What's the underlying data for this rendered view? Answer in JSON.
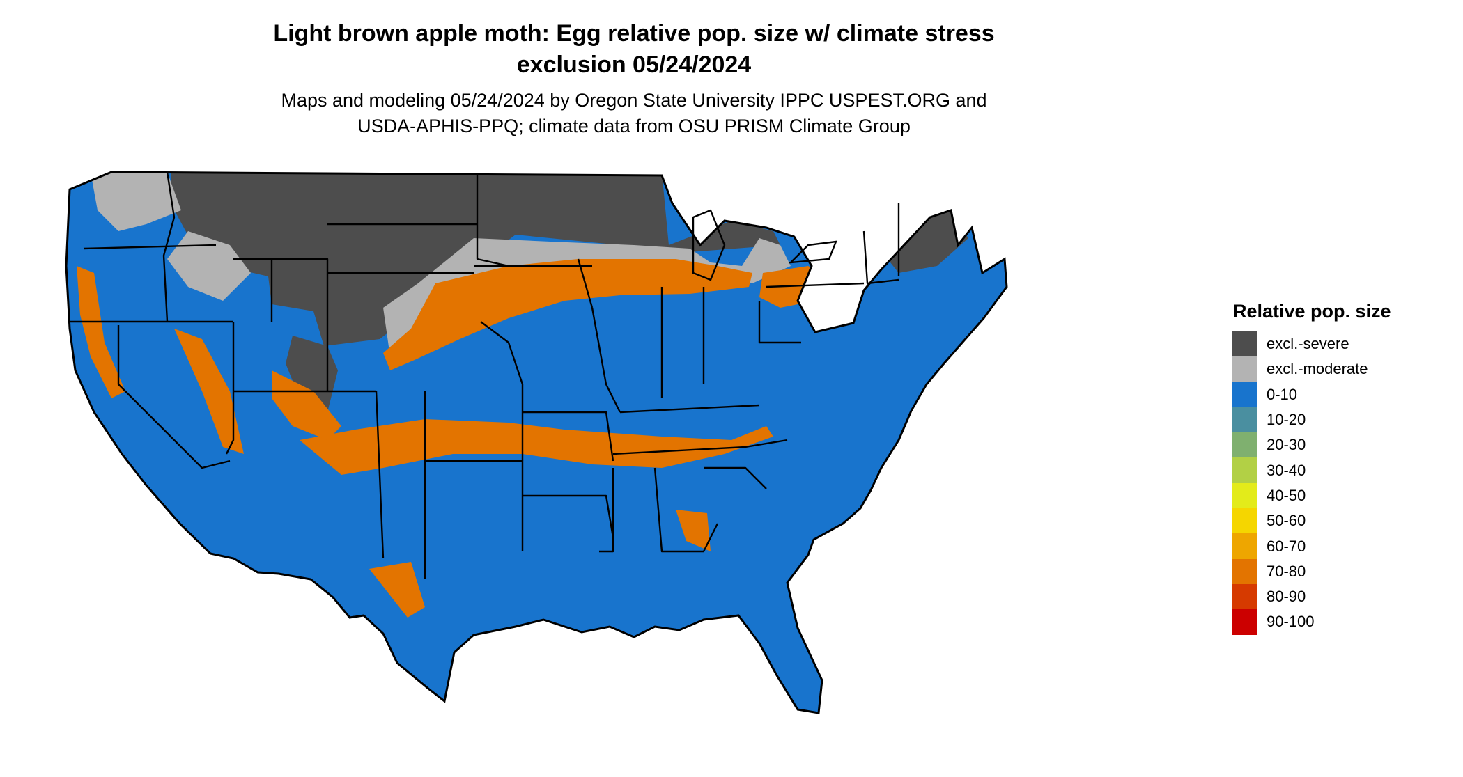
{
  "header": {
    "title_line1": "Light brown apple moth: Egg relative pop. size w/ climate stress",
    "title_line2": "exclusion 05/24/2024",
    "subtitle_line1": "Maps and modeling 05/24/2024 by Oregon State University IPPC USPEST.ORG and",
    "subtitle_line2": "USDA-APHIS-PPQ; climate data from OSU PRISM Climate Group"
  },
  "legend": {
    "title": "Relative pop. size",
    "items": [
      {
        "label": "excl.-severe",
        "color": "#4d4d4d"
      },
      {
        "label": "excl.-moderate",
        "color": "#b3b3b3"
      },
      {
        "label": "0-10",
        "color": "#1874cd"
      },
      {
        "label": "10-20",
        "color": "#4a8fa0"
      },
      {
        "label": "20-30",
        "color": "#7fb06f"
      },
      {
        "label": "30-40",
        "color": "#b2d045"
      },
      {
        "label": "40-50",
        "color": "#e3eb1a"
      },
      {
        "label": "50-60",
        "color": "#f5d600"
      },
      {
        "label": "60-70",
        "color": "#eea600"
      },
      {
        "label": "70-80",
        "color": "#e37400"
      },
      {
        "label": "80-90",
        "color": "#d63a00"
      },
      {
        "label": "90-100",
        "color": "#cc0000"
      }
    ]
  }
}
